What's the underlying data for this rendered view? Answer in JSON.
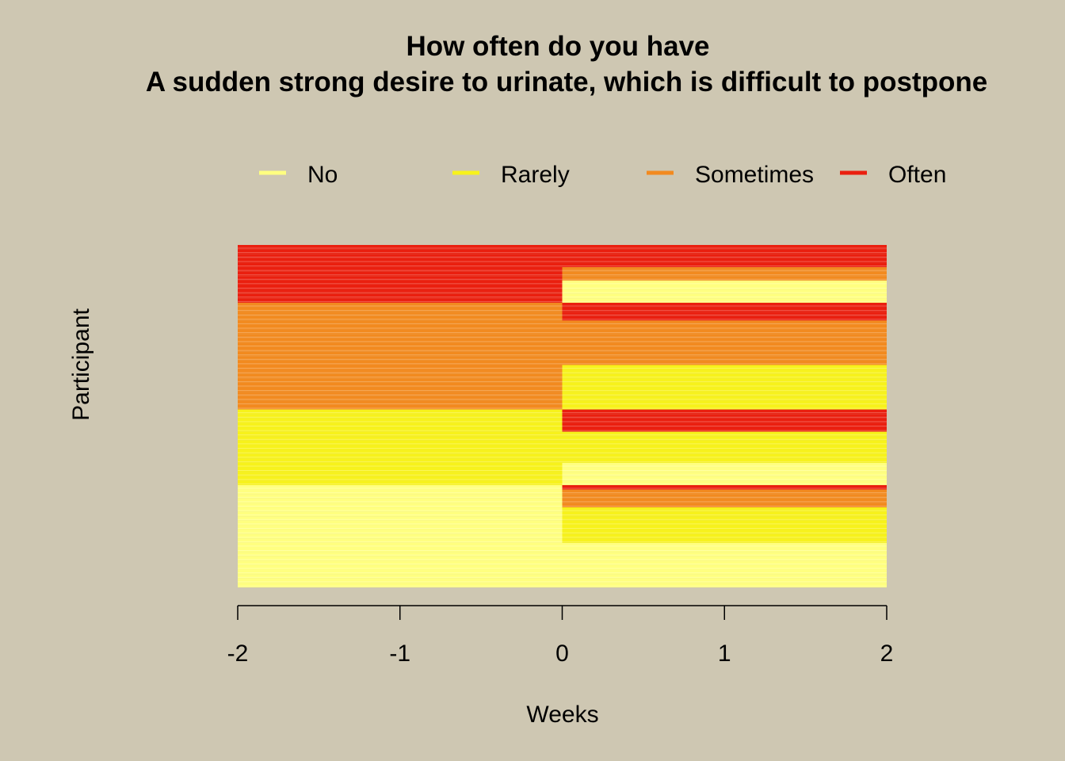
{
  "chart_data": {
    "type": "heatmap",
    "title": [
      "How often do you have",
      "A sudden strong desire to urinate, which is difficult to postpone"
    ],
    "xlabel": "Weeks",
    "ylabel": "Participant",
    "xlim": [
      -2,
      2
    ],
    "x_ticks": [
      "-2",
      "-1",
      "0",
      "1",
      "2"
    ],
    "legend": {
      "placement": "top",
      "entries": [
        {
          "label": "No",
          "color": "#FFFF80"
        },
        {
          "label": "Rarely",
          "color": "#F7F21B"
        },
        {
          "label": "Sometimes",
          "color": "#F28A1F"
        },
        {
          "label": "Often",
          "color": "#EA1F0F"
        }
      ]
    },
    "levels": [
      "No",
      "Rarely",
      "Sometimes",
      "Often"
    ],
    "periods": [
      {
        "x_start": -2,
        "x_end": 0
      },
      {
        "x_start": 0,
        "x_end": 2
      }
    ],
    "participant_count": 77,
    "groups": [
      {
        "count": 5,
        "before": "Often",
        "after": "Often"
      },
      {
        "count": 3,
        "before": "Often",
        "after": "Sometimes"
      },
      {
        "count": 5,
        "before": "Often",
        "after": "No"
      },
      {
        "count": 4,
        "before": "Sometimes",
        "after": "Often"
      },
      {
        "count": 10,
        "before": "Sometimes",
        "after": "Sometimes"
      },
      {
        "count": 10,
        "before": "Sometimes",
        "after": "Rarely"
      },
      {
        "count": 5,
        "before": "Rarely",
        "after": "Often"
      },
      {
        "count": 7,
        "before": "Rarely",
        "after": "Rarely"
      },
      {
        "count": 5,
        "before": "Rarely",
        "after": "No"
      },
      {
        "count": 1,
        "before": "No",
        "after": "Often"
      },
      {
        "count": 4,
        "before": "No",
        "after": "Sometimes"
      },
      {
        "count": 8,
        "before": "No",
        "after": "Rarely"
      },
      {
        "count": 10,
        "before": "No",
        "after": "No"
      }
    ]
  }
}
